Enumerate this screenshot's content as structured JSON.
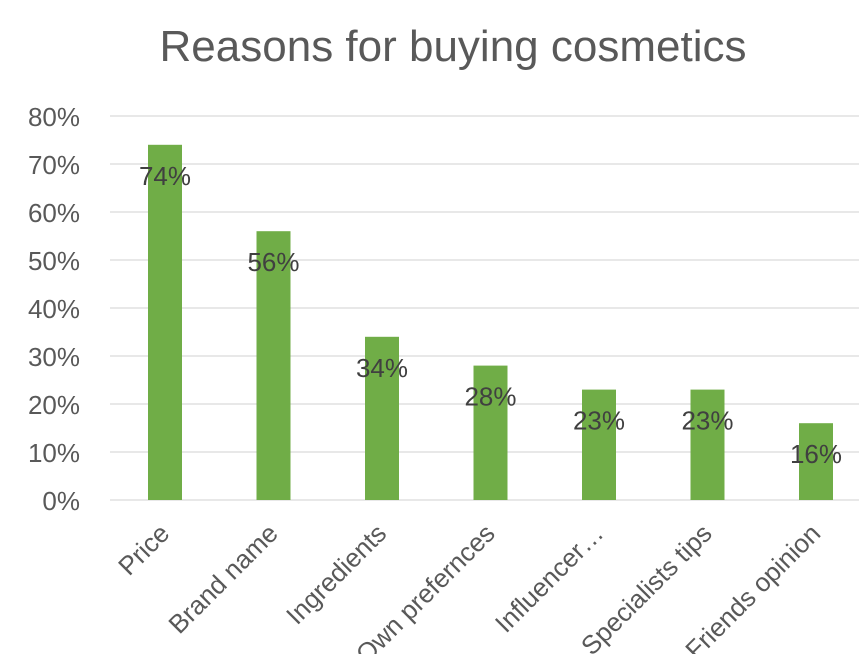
{
  "chart_data": {
    "type": "bar",
    "title": "Reasons for buying cosmetics",
    "categories": [
      "Price",
      "Brand name",
      "Ingredients",
      "Own prefernces",
      "Influencer…",
      "Specialists tips",
      "Friends opinion"
    ],
    "values": [
      74,
      56,
      34,
      28,
      23,
      23,
      16
    ],
    "data_labels": [
      "74%",
      "56%",
      "34%",
      "28%",
      "23%",
      "23%",
      "16%"
    ],
    "y_ticks": [
      "0%",
      "10%",
      "20%",
      "30%",
      "40%",
      "50%",
      "60%",
      "70%",
      "80%"
    ],
    "ylim": [
      0,
      80
    ],
    "xlabel": "",
    "ylabel": "",
    "grid": true,
    "legend": "none",
    "colors": {
      "bar": "#70ad47",
      "grid": "#d9d9d9",
      "axis_text": "#595959",
      "label_text": "#404040",
      "title": "#595959"
    }
  }
}
